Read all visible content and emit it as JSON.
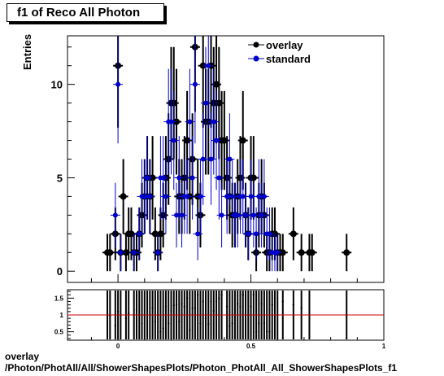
{
  "title": "f1 of Reco All Photon",
  "footer": {
    "line1": "overlay",
    "line2": "/Photon/PhotAll/All/ShowerShapesPlots/Photon_PhotAll_All_ShowerShapesPlots_f1"
  },
  "chart_data": [
    {
      "type": "scatter",
      "ylabel": "Entries",
      "xlim": [
        -0.19,
        1.0
      ],
      "ylim": [
        -0.6,
        12.6
      ],
      "x_ticks": [
        "0",
        "0.5"
      ],
      "y_ticks": [
        "0",
        "5",
        "10"
      ],
      "legend": {
        "position": "top-right",
        "entries": [
          "overlay",
          "standard"
        ]
      },
      "colors": {
        "overlay": "#000000",
        "standard": "#0000cc",
        "ratio_line": "#cc0000"
      },
      "series": [
        {
          "name": "overlay",
          "points": [
            [
              -0.04,
              1
            ],
            [
              -0.03,
              1
            ],
            [
              -0.01,
              2
            ],
            [
              0.0,
              11
            ],
            [
              0.01,
              1
            ],
            [
              0.02,
              4
            ],
            [
              0.03,
              1
            ],
            [
              0.04,
              2
            ],
            [
              0.05,
              2
            ],
            [
              0.06,
              1
            ],
            [
              0.07,
              1
            ],
            [
              0.08,
              2
            ],
            [
              0.09,
              3
            ],
            [
              0.1,
              4
            ],
            [
              0.11,
              5
            ],
            [
              0.12,
              4
            ],
            [
              0.13,
              5
            ],
            [
              0.14,
              2
            ],
            [
              0.15,
              1
            ],
            [
              0.16,
              2
            ],
            [
              0.17,
              3
            ],
            [
              0.18,
              5
            ],
            [
              0.19,
              6
            ],
            [
              0.2,
              9
            ],
            [
              0.21,
              9
            ],
            [
              0.22,
              8
            ],
            [
              0.23,
              4
            ],
            [
              0.24,
              4
            ],
            [
              0.25,
              5
            ],
            [
              0.26,
              7
            ],
            [
              0.27,
              4
            ],
            [
              0.28,
              6
            ],
            [
              0.29,
              12
            ],
            [
              0.3,
              4
            ],
            [
              0.31,
              3
            ],
            [
              0.32,
              11
            ],
            [
              0.33,
              8
            ],
            [
              0.34,
              8
            ],
            [
              0.35,
              11
            ],
            [
              0.36,
              9
            ],
            [
              0.37,
              10
            ],
            [
              0.38,
              9
            ],
            [
              0.39,
              7
            ],
            [
              0.4,
              7
            ],
            [
              0.41,
              5
            ],
            [
              0.42,
              4
            ],
            [
              0.43,
              3
            ],
            [
              0.44,
              3
            ],
            [
              0.45,
              4
            ],
            [
              0.46,
              5
            ],
            [
              0.47,
              7
            ],
            [
              0.48,
              3
            ],
            [
              0.49,
              2
            ],
            [
              0.5,
              5
            ],
            [
              0.51,
              5
            ],
            [
              0.52,
              1
            ],
            [
              0.53,
              3
            ],
            [
              0.54,
              4
            ],
            [
              0.55,
              3
            ],
            [
              0.56,
              1
            ],
            [
              0.57,
              1
            ],
            [
              0.58,
              2
            ],
            [
              0.59,
              2
            ],
            [
              0.6,
              1
            ],
            [
              0.61,
              1
            ],
            [
              0.62,
              1
            ],
            [
              0.66,
              2
            ],
            [
              0.69,
              1
            ],
            [
              0.72,
              1
            ],
            [
              0.73,
              1
            ],
            [
              0.86,
              1
            ]
          ]
        },
        {
          "name": "standard",
          "points": [
            [
              -0.01,
              3
            ],
            [
              0.0,
              10
            ],
            [
              0.01,
              1
            ],
            [
              0.06,
              1
            ],
            [
              0.08,
              2
            ],
            [
              0.09,
              4
            ],
            [
              0.1,
              4
            ],
            [
              0.11,
              5
            ],
            [
              0.12,
              4
            ],
            [
              0.15,
              1
            ],
            [
              0.16,
              5
            ],
            [
              0.17,
              5
            ],
            [
              0.18,
              4
            ],
            [
              0.19,
              8
            ],
            [
              0.2,
              8
            ],
            [
              0.21,
              7
            ],
            [
              0.22,
              3
            ],
            [
              0.23,
              5
            ],
            [
              0.24,
              3
            ],
            [
              0.25,
              4
            ],
            [
              0.26,
              4
            ],
            [
              0.27,
              8
            ],
            [
              0.28,
              5
            ],
            [
              0.29,
              10
            ],
            [
              0.3,
              2
            ],
            [
              0.31,
              4
            ],
            [
              0.32,
              6
            ],
            [
              0.33,
              9
            ],
            [
              0.34,
              11
            ],
            [
              0.35,
              6
            ],
            [
              0.36,
              8
            ],
            [
              0.37,
              7
            ],
            [
              0.38,
              5
            ],
            [
              0.39,
              3
            ],
            [
              0.41,
              4
            ],
            [
              0.42,
              6
            ],
            [
              0.43,
              4
            ],
            [
              0.44,
              3
            ],
            [
              0.45,
              3
            ],
            [
              0.46,
              4
            ],
            [
              0.47,
              4
            ],
            [
              0.48,
              3
            ],
            [
              0.49,
              2
            ],
            [
              0.5,
              4
            ],
            [
              0.51,
              3
            ],
            [
              0.52,
              2
            ],
            [
              0.53,
              4
            ],
            [
              0.54,
              3
            ],
            [
              0.55,
              4
            ],
            [
              0.56,
              2
            ],
            [
              0.57,
              2
            ],
            [
              0.58,
              1
            ],
            [
              0.59,
              1
            ],
            [
              0.6,
              1
            ]
          ]
        }
      ]
    },
    {
      "type": "scatter",
      "ylim": [
        0.25,
        1.75
      ],
      "y_ticks": [
        "0.5",
        "1",
        "1.5"
      ],
      "x_ticks": [
        "0",
        "0.5",
        "1"
      ],
      "reference_line": 1,
      "ratio_points": [
        [
          -0.04,
          1.05
        ],
        [
          -0.03,
          0.98
        ],
        [
          -0.01,
          0.68
        ],
        [
          0.0,
          1.1
        ],
        [
          0.01,
          1.0
        ],
        [
          0.03,
          0.9
        ],
        [
          0.04,
          1.05
        ],
        [
          0.06,
          1.0
        ],
        [
          0.07,
          1.15
        ],
        [
          0.08,
          1.0
        ],
        [
          0.09,
          0.75
        ],
        [
          0.1,
          1.0
        ],
        [
          0.11,
          1.0
        ],
        [
          0.12,
          1.0
        ],
        [
          0.13,
          1.2
        ],
        [
          0.14,
          0.8
        ],
        [
          0.15,
          1.0
        ],
        [
          0.16,
          0.5
        ],
        [
          0.17,
          0.6
        ],
        [
          0.18,
          1.25
        ],
        [
          0.19,
          0.75
        ],
        [
          0.2,
          1.12
        ],
        [
          0.21,
          1.28
        ],
        [
          0.22,
          1.3
        ],
        [
          0.23,
          0.8
        ],
        [
          0.24,
          1.33
        ],
        [
          0.25,
          1.25
        ],
        [
          0.26,
          1.5
        ],
        [
          0.27,
          0.55
        ],
        [
          0.28,
          1.2
        ],
        [
          0.29,
          1.2
        ],
        [
          0.3,
          1.6
        ],
        [
          0.31,
          0.75
        ],
        [
          0.32,
          1.4
        ],
        [
          0.33,
          0.9
        ],
        [
          0.34,
          0.73
        ],
        [
          0.35,
          1.4
        ],
        [
          0.36,
          1.12
        ],
        [
          0.37,
          1.4
        ],
        [
          0.38,
          1.5
        ],
        [
          0.39,
          1.6
        ],
        [
          0.41,
          1.25
        ],
        [
          0.42,
          0.67
        ],
        [
          0.43,
          0.75
        ],
        [
          0.44,
          1.0
        ],
        [
          0.45,
          1.33
        ],
        [
          0.46,
          1.25
        ],
        [
          0.47,
          1.6
        ],
        [
          0.48,
          1.0
        ],
        [
          0.49,
          1.0
        ],
        [
          0.5,
          1.25
        ],
        [
          0.51,
          1.6
        ],
        [
          0.52,
          0.5
        ],
        [
          0.53,
          0.75
        ],
        [
          0.54,
          1.33
        ],
        [
          0.55,
          0.75
        ],
        [
          0.56,
          0.5
        ],
        [
          0.57,
          0.5
        ],
        [
          0.58,
          1.3
        ],
        [
          0.59,
          1.5
        ],
        [
          0.6,
          1.0
        ],
        [
          0.62,
          1.4
        ],
        [
          0.66,
          1.3
        ],
        [
          0.69,
          1.2
        ],
        [
          0.72,
          1.0
        ],
        [
          0.86,
          1.0
        ]
      ]
    }
  ]
}
